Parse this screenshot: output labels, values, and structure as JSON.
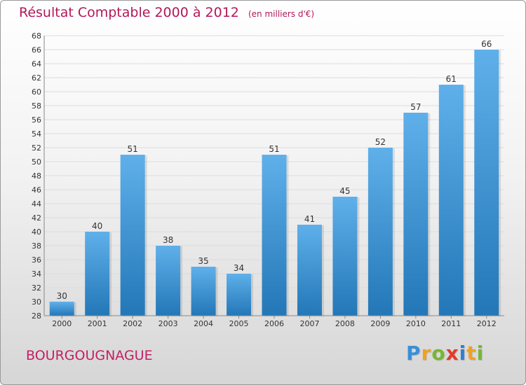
{
  "title": "Résultat Comptable 2000 à 2012",
  "subtitle": "(en milliers d'€)",
  "place": "BOURGOUGNAGUE",
  "logo": {
    "letters": [
      "P",
      "r",
      "o",
      "x",
      "i",
      "t",
      "i"
    ]
  },
  "colors": {
    "bar_light": "#5fb0ea",
    "bar_dark": "#2377b7",
    "title": "#b2185a",
    "grid": "#dcdcdc"
  },
  "chart_data": {
    "type": "bar",
    "title": "Résultat Comptable 2000 à 2012",
    "xlabel": "",
    "ylabel": "",
    "categories": [
      "2000",
      "2001",
      "2002",
      "2003",
      "2004",
      "2005",
      "2006",
      "2007",
      "2008",
      "2009",
      "2010",
      "2011",
      "2012"
    ],
    "values": [
      30,
      40,
      51,
      38,
      35,
      34,
      51,
      41,
      45,
      52,
      57,
      61,
      66
    ],
    "ylim": [
      28,
      68
    ],
    "yticks": [
      28,
      30,
      32,
      34,
      36,
      38,
      40,
      42,
      44,
      46,
      48,
      50,
      52,
      54,
      56,
      58,
      60,
      62,
      64,
      66,
      68
    ],
    "grid": true
  }
}
